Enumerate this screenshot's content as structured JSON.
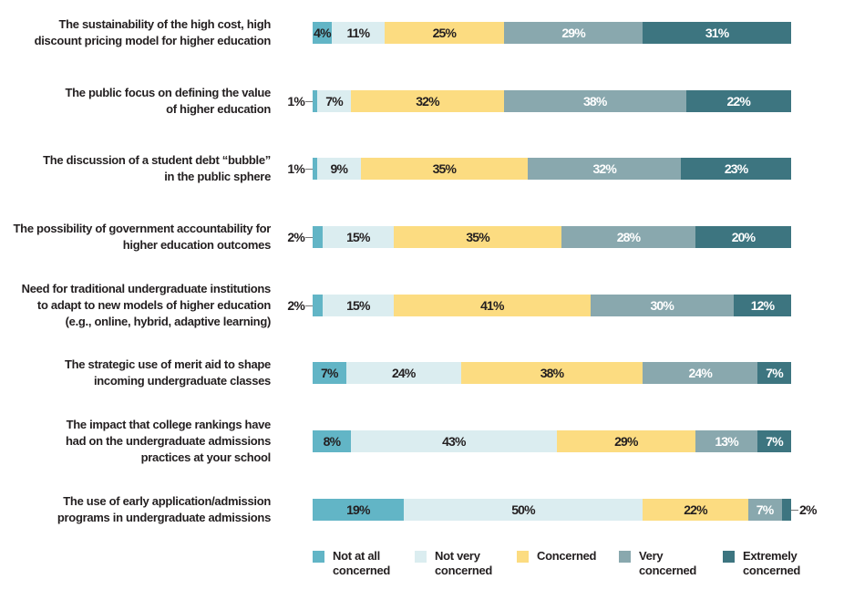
{
  "chart_data": {
    "type": "bar",
    "orientation": "horizontal",
    "stacked": true,
    "categories": [
      "The sustainability of the high cost, high\ndiscount pricing model for higher education",
      "The public focus on defining the value\nof higher education",
      "The discussion of a student debt “bubble”\nin the public sphere",
      "The possibility of government accountability for\nhigher education outcomes",
      "Need for traditional undergraduate institutions\nto adapt to new models of higher education\n(e.g., online, hybrid, adaptive learning)",
      "The strategic use of merit aid to shape\nincoming undergraduate classes",
      "The impact that college rankings have\nhad on the undergraduate admissions\npractices at your school",
      "The use of early application/admission\nprograms in undergraduate admissions"
    ],
    "series": [
      {
        "name": "Not at all concerned",
        "color": "#62b5c6",
        "values": [
          4,
          1,
          1,
          2,
          2,
          7,
          8,
          19
        ]
      },
      {
        "name": "Not very concerned",
        "color": "#dbedf0",
        "values": [
          11,
          7,
          9,
          15,
          15,
          24,
          43,
          50
        ]
      },
      {
        "name": "Concerned",
        "color": "#fcdc81",
        "values": [
          25,
          32,
          35,
          35,
          41,
          38,
          29,
          22
        ]
      },
      {
        "name": "Very concerned",
        "color": "#89a8ae",
        "values": [
          29,
          38,
          32,
          28,
          30,
          24,
          13,
          7
        ]
      },
      {
        "name": "Extremely concerned",
        "color": "#3d7580",
        "values": [
          31,
          22,
          23,
          20,
          12,
          7,
          7,
          2
        ]
      }
    ],
    "value_suffix": "%",
    "legend_position": "bottom",
    "grid": false
  }
}
